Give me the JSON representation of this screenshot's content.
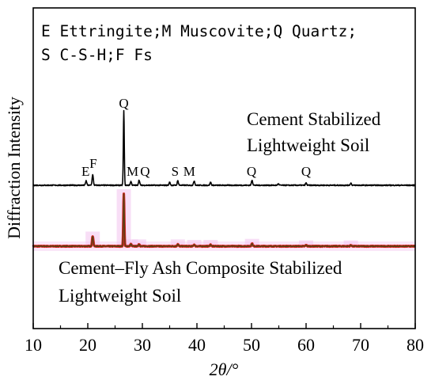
{
  "chart_data": {
    "type": "line",
    "title": "",
    "xlabel": "2θ/°",
    "ylabel": "Diffraction Intensity",
    "xlim": [
      10,
      80
    ],
    "x_ticks": [
      "10",
      "20",
      "30",
      "40",
      "50",
      "60",
      "70",
      "80"
    ],
    "y_ticks_shown": false,
    "grid": false,
    "legend_box": {
      "line1": "E Ettringite;M Muscovite;Q Quartz;",
      "line2": "S C-S-H;F Fs"
    },
    "series": [
      {
        "name": "Cement Stabilized Lightweight Soil",
        "label_lines": [
          "Cement Stabilized",
          "Lightweight Soil"
        ],
        "color": "#000000",
        "baseline": 0,
        "peaks": [
          {
            "x": 19.7,
            "h": 6
          },
          {
            "x": 20.9,
            "h": 14
          },
          {
            "x": 26.6,
            "h": 100
          },
          {
            "x": 27.9,
            "h": 5
          },
          {
            "x": 29.4,
            "h": 7
          },
          {
            "x": 35.0,
            "h": 4
          },
          {
            "x": 36.5,
            "h": 6
          },
          {
            "x": 39.5,
            "h": 6
          },
          {
            "x": 42.5,
            "h": 4
          },
          {
            "x": 50.1,
            "h": 7
          },
          {
            "x": 54.9,
            "h": 2
          },
          {
            "x": 60.0,
            "h": 3
          },
          {
            "x": 68.2,
            "h": 3
          }
        ],
        "annotations": [
          {
            "x": 19.6,
            "text": "E"
          },
          {
            "x": 21.0,
            "text": "F"
          },
          {
            "x": 26.6,
            "text": "Q"
          },
          {
            "x": 28.2,
            "text": "M"
          },
          {
            "x": 30.5,
            "text": "Q"
          },
          {
            "x": 36.0,
            "text": "S"
          },
          {
            "x": 38.6,
            "text": "M"
          },
          {
            "x": 50.0,
            "text": "Q"
          },
          {
            "x": 60.0,
            "text": "Q"
          }
        ]
      },
      {
        "name": "Cement–Fly Ash Composite Stabilized Lightweight Soil",
        "label_lines": [
          "Cement–Fly Ash Composite Stabilized",
          "Lightweight Soil"
        ],
        "color": "#5a3f10",
        "outline_color": "#d82828",
        "halo_color": "#f4c8f0",
        "baseline": 0,
        "peaks": [
          {
            "x": 20.9,
            "h": 19
          },
          {
            "x": 26.6,
            "h": 100
          },
          {
            "x": 27.9,
            "h": 4
          },
          {
            "x": 29.4,
            "h": 4
          },
          {
            "x": 36.5,
            "h": 4
          },
          {
            "x": 39.5,
            "h": 3
          },
          {
            "x": 42.5,
            "h": 3
          },
          {
            "x": 50.1,
            "h": 5
          },
          {
            "x": 60.0,
            "h": 2
          },
          {
            "x": 68.2,
            "h": 2
          }
        ]
      }
    ]
  }
}
